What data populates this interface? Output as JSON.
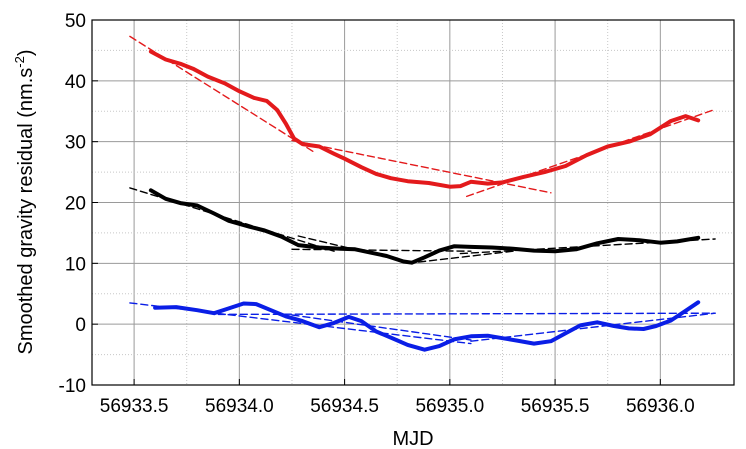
{
  "chart_data": {
    "type": "line",
    "xlabel": "MJD",
    "ylabel": "Smoothed gravity residual (nm.s",
    "ylabel_sup": "-2",
    "ylabel_close": ")",
    "xlim": [
      56933.3,
      56936.35
    ],
    "ylim": [
      -10,
      50
    ],
    "xticks": [
      56933.5,
      56934.0,
      56934.5,
      56935.0,
      56935.5,
      56936.0
    ],
    "xtick_labels": [
      "56933.5",
      "56934.0",
      "56934.5",
      "56935.0",
      "56935.5",
      "56936.0"
    ],
    "yticks": [
      -10,
      0,
      10,
      20,
      30,
      40,
      50
    ],
    "ytick_labels": [
      "-10",
      "0",
      "10",
      "20",
      "30",
      "40",
      "50"
    ],
    "grid": true,
    "series": [
      {
        "color": "#e31a1c",
        "style": "solid",
        "points": [
          [
            56933.58,
            44.8
          ],
          [
            56933.65,
            43.5
          ],
          [
            56933.72,
            42.8
          ],
          [
            56933.78,
            42.0
          ],
          [
            56933.85,
            40.7
          ],
          [
            56933.93,
            39.6
          ],
          [
            56934.0,
            38.3
          ],
          [
            56934.07,
            37.2
          ],
          [
            56934.13,
            36.7
          ],
          [
            56934.18,
            35.2
          ],
          [
            56934.22,
            33.0
          ],
          [
            56934.26,
            30.5
          ],
          [
            56934.3,
            29.6
          ],
          [
            56934.38,
            29.2
          ],
          [
            56934.45,
            28.0
          ],
          [
            56934.5,
            27.2
          ],
          [
            56934.58,
            25.8
          ],
          [
            56934.65,
            24.7
          ],
          [
            56934.72,
            24.0
          ],
          [
            56934.8,
            23.5
          ],
          [
            56934.9,
            23.2
          ],
          [
            56935.0,
            22.6
          ],
          [
            56935.05,
            22.7
          ],
          [
            56935.1,
            23.4
          ],
          [
            56935.18,
            23.1
          ],
          [
            56935.25,
            23.3
          ],
          [
            56935.35,
            24.2
          ],
          [
            56935.45,
            25.0
          ],
          [
            56935.55,
            26.0
          ],
          [
            56935.65,
            27.8
          ],
          [
            56935.75,
            29.2
          ],
          [
            56935.85,
            30.0
          ],
          [
            56935.95,
            31.2
          ],
          [
            56936.05,
            33.4
          ],
          [
            56936.12,
            34.2
          ],
          [
            56936.18,
            33.5
          ]
        ]
      },
      {
        "color": "#000000",
        "style": "solid",
        "points": [
          [
            56933.58,
            22.0
          ],
          [
            56933.65,
            20.6
          ],
          [
            56933.72,
            19.9
          ],
          [
            56933.8,
            19.5
          ],
          [
            56933.88,
            18.2
          ],
          [
            56933.95,
            17.0
          ],
          [
            56934.05,
            16.0
          ],
          [
            56934.12,
            15.4
          ],
          [
            56934.2,
            14.4
          ],
          [
            56934.28,
            13.0
          ],
          [
            56934.38,
            12.6
          ],
          [
            56934.48,
            12.4
          ],
          [
            56934.55,
            12.3
          ],
          [
            56934.62,
            11.8
          ],
          [
            56934.7,
            11.2
          ],
          [
            56934.78,
            10.3
          ],
          [
            56934.82,
            10.1
          ],
          [
            56934.88,
            11.0
          ],
          [
            56934.95,
            12.1
          ],
          [
            56935.02,
            12.8
          ],
          [
            56935.1,
            12.7
          ],
          [
            56935.2,
            12.6
          ],
          [
            56935.3,
            12.4
          ],
          [
            56935.4,
            12.1
          ],
          [
            56935.5,
            12.0
          ],
          [
            56935.6,
            12.3
          ],
          [
            56935.7,
            13.3
          ],
          [
            56935.8,
            14.0
          ],
          [
            56935.9,
            13.8
          ],
          [
            56936.0,
            13.4
          ],
          [
            56936.08,
            13.6
          ],
          [
            56936.18,
            14.2
          ]
        ]
      },
      {
        "color": "#0a1ee6",
        "style": "solid",
        "points": [
          [
            56933.6,
            2.7
          ],
          [
            56933.7,
            2.8
          ],
          [
            56933.8,
            2.3
          ],
          [
            56933.88,
            1.8
          ],
          [
            56933.95,
            2.6
          ],
          [
            56934.02,
            3.4
          ],
          [
            56934.08,
            3.3
          ],
          [
            56934.15,
            2.3
          ],
          [
            56934.22,
            1.3
          ],
          [
            56934.3,
            0.5
          ],
          [
            56934.38,
            -0.5
          ],
          [
            56934.45,
            0.2
          ],
          [
            56934.52,
            1.2
          ],
          [
            56934.58,
            0.5
          ],
          [
            56934.65,
            -1.2
          ],
          [
            56934.72,
            -2.2
          ],
          [
            56934.8,
            -3.4
          ],
          [
            56934.88,
            -4.2
          ],
          [
            56934.95,
            -3.6
          ],
          [
            56935.02,
            -2.5
          ],
          [
            56935.1,
            -2.0
          ],
          [
            56935.18,
            -1.9
          ],
          [
            56935.25,
            -2.3
          ],
          [
            56935.32,
            -2.7
          ],
          [
            56935.4,
            -3.2
          ],
          [
            56935.48,
            -2.8
          ],
          [
            56935.55,
            -1.5
          ],
          [
            56935.62,
            -0.2
          ],
          [
            56935.7,
            0.3
          ],
          [
            56935.78,
            -0.3
          ],
          [
            56935.85,
            -0.7
          ],
          [
            56935.92,
            -0.8
          ],
          [
            56935.98,
            -0.3
          ],
          [
            56936.05,
            0.6
          ],
          [
            56936.12,
            2.2
          ],
          [
            56936.18,
            3.6
          ]
        ]
      },
      {
        "color": "#e31a1c",
        "style": "dashed",
        "points": [
          [
            56933.48,
            47.3
          ],
          [
            56934.35,
            28.4
          ]
        ]
      },
      {
        "color": "#e31a1c",
        "style": "dashed",
        "points": [
          [
            56934.25,
            30.2
          ],
          [
            56935.48,
            21.6
          ]
        ]
      },
      {
        "color": "#e31a1c",
        "style": "dashed",
        "points": [
          [
            56935.08,
            21.0
          ],
          [
            56936.26,
            35.3
          ]
        ]
      },
      {
        "color": "#000000",
        "style": "dashed",
        "points": [
          [
            56933.48,
            22.4
          ],
          [
            56934.45,
            12.0
          ]
        ]
      },
      {
        "color": "#000000",
        "style": "dashed",
        "points": [
          [
            56934.25,
            12.3
          ],
          [
            56935.1,
            12.0
          ]
        ]
      },
      {
        "color": "#000000",
        "style": "dashed",
        "points": [
          [
            56934.28,
            14.5
          ],
          [
            56934.8,
            10.2
          ]
        ]
      },
      {
        "color": "#000000",
        "style": "dashed",
        "points": [
          [
            56934.8,
            10.0
          ],
          [
            56935.3,
            12.0
          ]
        ]
      },
      {
        "color": "#000000",
        "style": "dashed",
        "points": [
          [
            56935.05,
            11.6
          ],
          [
            56936.26,
            14.0
          ]
        ]
      },
      {
        "color": "#0a1ee6",
        "style": "dashed",
        "points": [
          [
            56933.48,
            3.5
          ],
          [
            56935.1,
            -3.2
          ]
        ]
      },
      {
        "color": "#0a1ee6",
        "style": "dashed",
        "points": [
          [
            56933.9,
            1.6
          ],
          [
            56936.26,
            1.8
          ]
        ]
      },
      {
        "color": "#0a1ee6",
        "style": "dashed",
        "points": [
          [
            56934.25,
            1.5
          ],
          [
            56935.1,
            -2.6
          ]
        ]
      },
      {
        "color": "#0a1ee6",
        "style": "dashed",
        "points": [
          [
            56935.1,
            -2.8
          ],
          [
            56936.26,
            1.8
          ]
        ]
      }
    ]
  }
}
